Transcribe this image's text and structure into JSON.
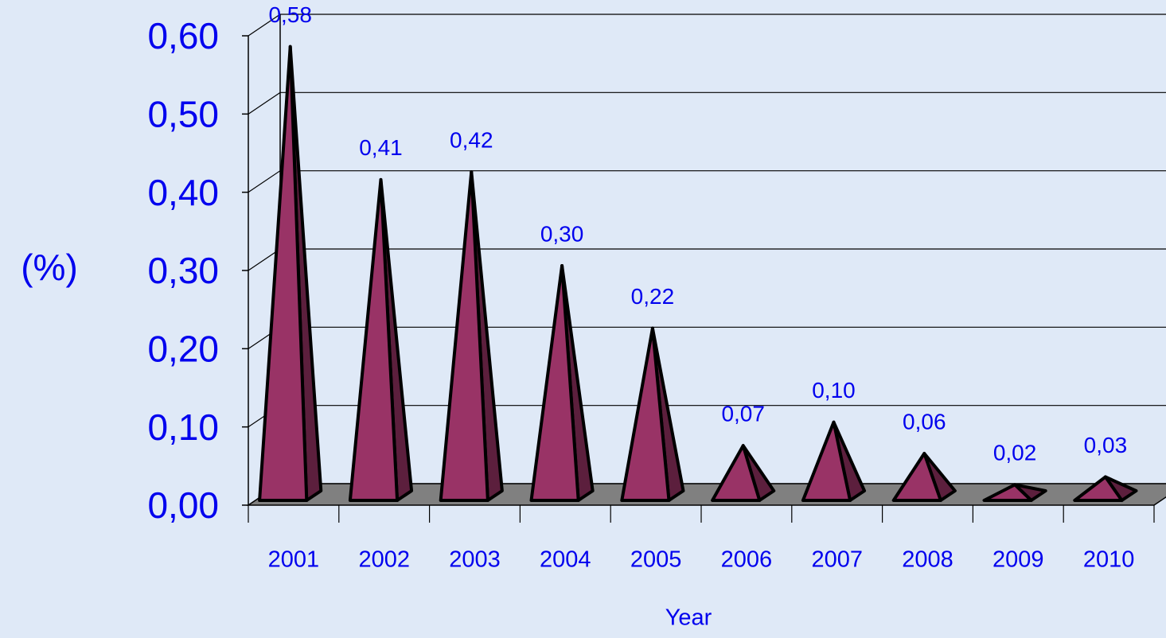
{
  "chart_data": {
    "type": "bar",
    "x_label": "Year",
    "y_label": "(%)",
    "categories": [
      "2001",
      "2002",
      "2003",
      "2004",
      "2005",
      "2006",
      "2007",
      "2008",
      "2009",
      "2010"
    ],
    "values": [
      0.58,
      0.41,
      0.42,
      0.3,
      0.22,
      0.07,
      0.1,
      0.06,
      0.02,
      0.03
    ],
    "value_labels": [
      "0,58",
      "0,41",
      "0,42",
      "0,30",
      "0,22",
      "0,07",
      "0,10",
      "0,06",
      "0,02",
      "0,03"
    ],
    "color": "#993366",
    "ylim": [
      0,
      0.6
    ],
    "yticks": [
      {
        "value": 0,
        "label": "0,00"
      },
      {
        "value": 0.1,
        "label": "0,10"
      },
      {
        "value": 0.2,
        "label": "0,20"
      },
      {
        "value": 0.3,
        "label": "0,30"
      },
      {
        "value": 0.4,
        "label": "0,40"
      },
      {
        "value": 0.5,
        "label": "0,50"
      },
      {
        "value": 0.6,
        "label": "0,60"
      }
    ],
    "grid": true
  }
}
